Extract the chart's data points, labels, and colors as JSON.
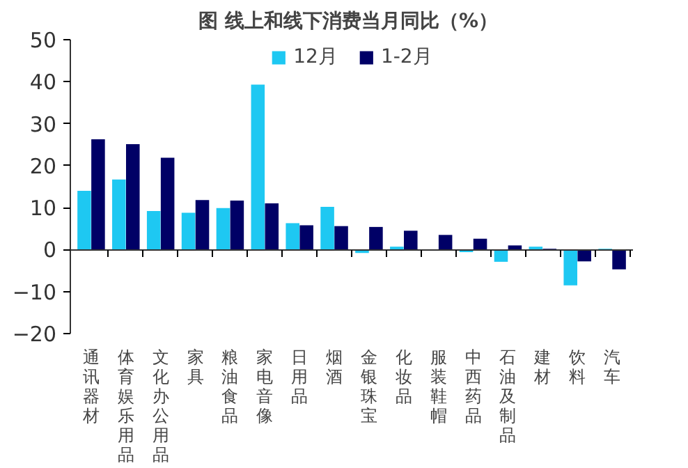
{
  "chart_data": {
    "type": "bar",
    "title": "图  线上和线下消费当月同比（%）",
    "categories": [
      "通讯器材",
      "体育娱乐用品",
      "文化办公用品",
      "家具",
      "粮油食品",
      "家电音像",
      "日用品",
      "烟酒",
      "金银珠宝",
      "化妆品",
      "服装鞋帽",
      "中西药品",
      "石油及制品",
      "建材",
      "饮料",
      "汽车"
    ],
    "series": [
      {
        "name": "12月",
        "color": "#1ec8f2",
        "values": [
          14.0,
          16.7,
          9.2,
          8.8,
          9.9,
          39.3,
          6.3,
          10.2,
          -0.8,
          0.7,
          null,
          -0.6,
          -2.9,
          0.7,
          -8.5,
          0.2
        ]
      },
      {
        "name": "1-2月",
        "color": "#000066",
        "values": [
          26.3,
          25.1,
          21.9,
          11.8,
          11.7,
          11.0,
          5.8,
          5.6,
          5.4,
          4.5,
          3.5,
          2.6,
          1.0,
          0.2,
          -2.8,
          -4.7
        ]
      }
    ],
    "ylim": [
      -20,
      50
    ],
    "yticks": [
      -20,
      -10,
      0,
      10,
      20,
      30,
      40,
      50
    ],
    "legend": "top"
  }
}
